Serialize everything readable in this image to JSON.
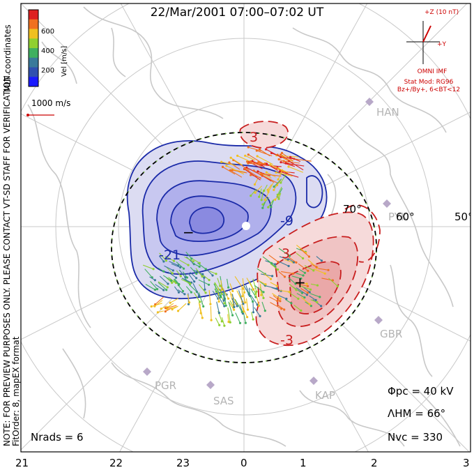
{
  "title": "22/Mar/2001 07:00–07:02 UT",
  "side_notes": {
    "coords": "MLT coordinates",
    "preview": "NOTE: FOR PREVIEW PURPOSES ONLY. PLEASE CONTACT VT-SD STAFF FOR VERIFICATION.",
    "fit": "FitOrder: 8, mapEX format"
  },
  "colorbar": {
    "label": "Vel [m/s]",
    "ticks": [
      "600",
      "400",
      "200"
    ],
    "colors": [
      "#dd2020",
      "#f07020",
      "#f0c020",
      "#90d030",
      "#40b060",
      "#3a7a9a",
      "#3050b0",
      "#1a1aff"
    ]
  },
  "vector_scale": "1000 m/s",
  "imf": {
    "z_label": "+Z (10 nT)",
    "y_label": "+Y",
    "source": "OMNI IMF",
    "model": "Stat Mod: RG96",
    "condition": "Bz+/By+, 6<BT<12"
  },
  "lat_labels": [
    "70°",
    "60°",
    "50°"
  ],
  "stations": [
    "HAN",
    "PYK",
    "GBR",
    "PGR",
    "SAS",
    "KAP"
  ],
  "contour_labels": [
    "3",
    "-9",
    "-21",
    "3",
    "-3"
  ],
  "focus_marks": [
    "−",
    "+"
  ],
  "stats": {
    "phi": "Φpc = 40 kV",
    "lambda": "ΛHM = 66°",
    "nvc": "Nvc = 330",
    "nrads": "Nrads = 6"
  },
  "mlt_labels": [
    "21",
    "22",
    "23",
    "0",
    "1",
    "2",
    "3"
  ]
}
